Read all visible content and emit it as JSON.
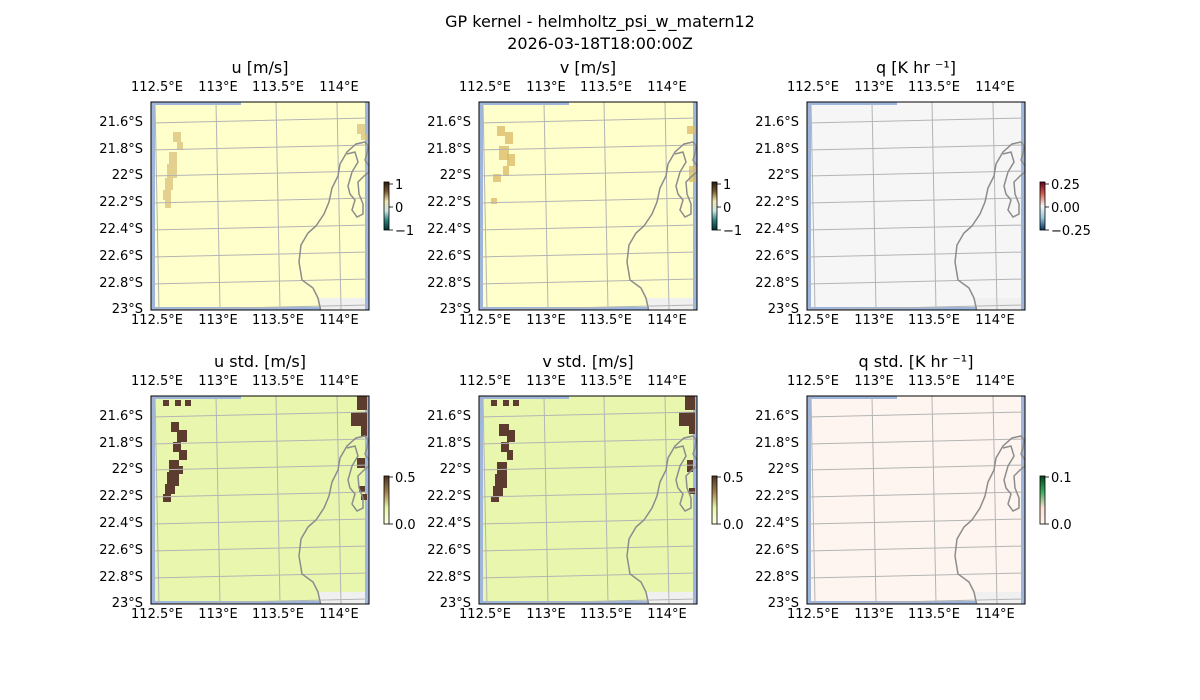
{
  "figure": {
    "title_line1": "GP kernel - helmholtz_psi_w_matern12",
    "title_line2": "2026-03-18T18:00:00Z"
  },
  "map": {
    "lon_ticks": [
      "112.5°E",
      "113°E",
      "113.5°E",
      "114°E"
    ],
    "lat_ticks": [
      "21.6°S",
      "21.8°S",
      "22°S",
      "22.2°S",
      "22.4°S",
      "22.6°S",
      "22.8°S",
      "23°S"
    ],
    "land_color": "#f0f0f0",
    "ocean_edge_color": "#9eb6dc",
    "coast_color": "#8c8c8c",
    "grid_color": "#b4b4b4"
  },
  "panels": [
    {
      "title": "u [m/s]",
      "bg": "#ffffcc",
      "patch_color": "#d9c07a",
      "cbar": {
        "ticks": [
          "1",
          "0",
          "−1"
        ],
        "colors": [
          "#2b1a0e",
          "#7a5a32",
          "#f3e6b0",
          "#cde8e4",
          "#2a7f7a",
          "#003330"
        ]
      }
    },
    {
      "title": "v [m/s]",
      "bg": "#ffffcc",
      "patch_color": "#d9b865",
      "cbar": {
        "ticks": [
          "1",
          "0",
          "−1"
        ],
        "colors": [
          "#2b1a0e",
          "#7a5a32",
          "#f3e6b0",
          "#cde8e4",
          "#2a7f7a",
          "#003330"
        ]
      }
    },
    {
      "title": "q [K hr ⁻¹]",
      "bg": "#f6f6f6",
      "patch_color": "#f6f6f6",
      "cbar": {
        "ticks": [
          "0.25",
          "0.00",
          "−0.25"
        ],
        "colors": [
          "#67001f",
          "#d6604d",
          "#f7f7f7",
          "#92c5de",
          "#053061"
        ]
      }
    },
    {
      "title": "u std. [m/s]",
      "bg": "#e9f7ae",
      "patch_color": "#5b3c2e",
      "cbar": {
        "ticks": [
          "0.5",
          "0.0"
        ],
        "colors": [
          "#4a3324",
          "#a08050",
          "#e9f7ae",
          "#ffffe5"
        ]
      }
    },
    {
      "title": "v std. [m/s]",
      "bg": "#e9f7ae",
      "patch_color": "#5b3c2e",
      "cbar": {
        "ticks": [
          "0.5",
          "0.0"
        ],
        "colors": [
          "#4a3324",
          "#a08050",
          "#e9f7ae",
          "#ffffe5"
        ]
      }
    },
    {
      "title": "q std. [K hr ⁻¹]",
      "bg": "#fff5f0",
      "patch_color": "#fff5f0",
      "cbar": {
        "ticks": [
          "0.1",
          "0.0"
        ],
        "colors": [
          "#00441b",
          "#41ab5d",
          "#fee0d2",
          "#fff5f0"
        ]
      }
    }
  ]
}
